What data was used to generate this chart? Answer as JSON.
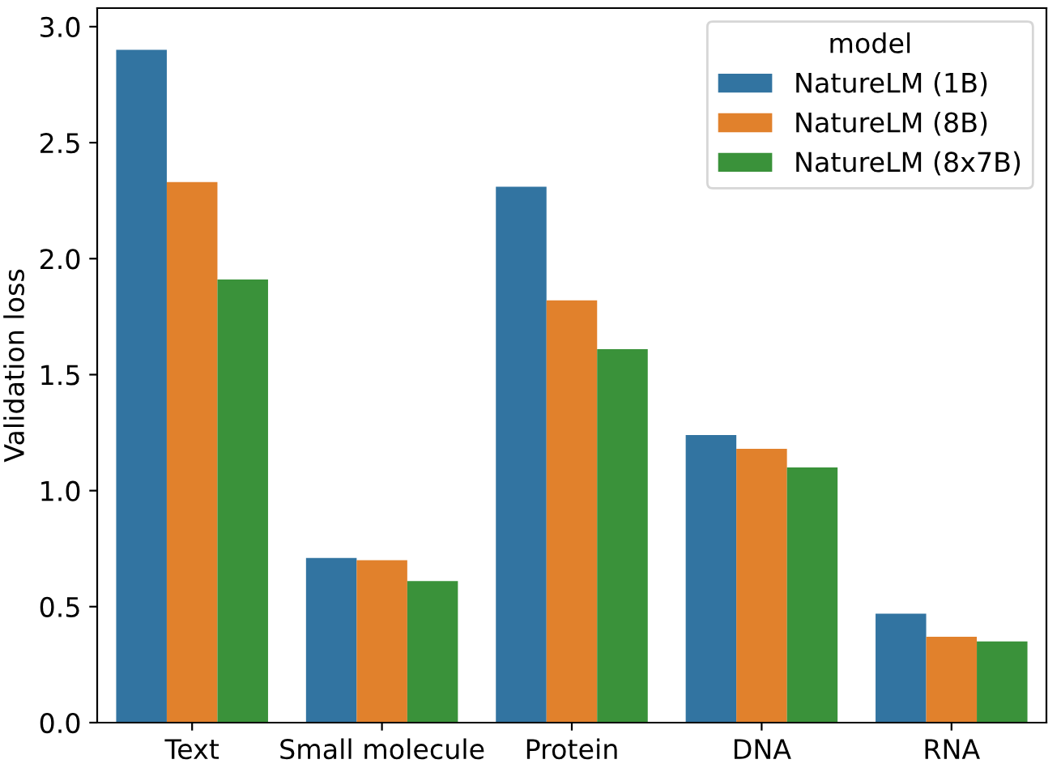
{
  "chart_data": {
    "type": "bar",
    "ylabel": "Validation loss",
    "legend_title": "model",
    "legend": "top right",
    "grid": false,
    "categories": [
      "Text",
      "Small molecule",
      "Protein",
      "DNA",
      "RNA"
    ],
    "ylim": [
      0,
      3.08
    ],
    "yticks": [
      {
        "value": 0,
        "label": "0.0"
      },
      {
        "value": 0.5,
        "label": "0.5"
      },
      {
        "value": 1,
        "label": "1.0"
      },
      {
        "value": 1.5,
        "label": "1.5"
      },
      {
        "value": 2,
        "label": "2.0"
      },
      {
        "value": 2.5,
        "label": "2.5"
      },
      {
        "value": 3,
        "label": "3.0"
      }
    ],
    "series": [
      {
        "name": "NatureLM (1B)",
        "color": "#3274a1",
        "values": [
          2.9,
          0.71,
          2.31,
          1.24,
          0.47
        ]
      },
      {
        "name": "NatureLM (8B)",
        "color": "#e1812c",
        "values": [
          2.33,
          0.7,
          1.82,
          1.18,
          0.37
        ]
      },
      {
        "name": "NatureLM (8x7B)",
        "color": "#3a923a",
        "values": [
          1.91,
          0.61,
          1.61,
          1.1,
          0.35
        ]
      }
    ]
  }
}
